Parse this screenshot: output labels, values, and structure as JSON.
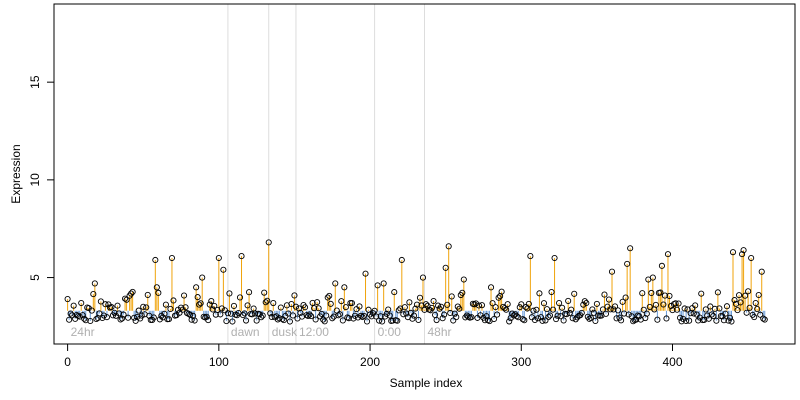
{
  "chart_data": {
    "type": "scatter",
    "xlabel": "Sample index",
    "ylabel": "Expression",
    "xlim": [
      -9,
      481
    ],
    "ylim": [
      1.6,
      19.0
    ],
    "x_ticks": [
      0,
      100,
      200,
      300,
      400
    ],
    "y_ticks": [
      5,
      10,
      15
    ],
    "baseline": 3.3,
    "colors": {
      "above": "#f0a30a",
      "below": "#6a9bd6",
      "vline": "#dddddd",
      "axis": "#000000",
      "phase_label": "#b0b0b0"
    },
    "phases": [
      {
        "label": "24hr",
        "x": 0
      },
      {
        "label": "dawn",
        "x": 106
      },
      {
        "label": "dusk",
        "x": 133
      },
      {
        "label": "12:00",
        "x": 151
      },
      {
        "label": "0:00",
        "x": 203
      },
      {
        "label": "48hr",
        "x": 236
      }
    ],
    "n_points": 462,
    "highlight_points": [
      {
        "x": 0,
        "y": 3.9
      },
      {
        "x": 18,
        "y": 4.7
      },
      {
        "x": 58,
        "y": 5.9
      },
      {
        "x": 59,
        "y": 4.5
      },
      {
        "x": 69,
        "y": 6.0
      },
      {
        "x": 85,
        "y": 4.5
      },
      {
        "x": 86,
        "y": 4.0
      },
      {
        "x": 89,
        "y": 5.0
      },
      {
        "x": 100,
        "y": 6.0
      },
      {
        "x": 103,
        "y": 5.4
      },
      {
        "x": 115,
        "y": 6.1
      },
      {
        "x": 133,
        "y": 6.8
      },
      {
        "x": 177,
        "y": 4.7
      },
      {
        "x": 183,
        "y": 4.5
      },
      {
        "x": 197,
        "y": 5.2
      },
      {
        "x": 205,
        "y": 4.6
      },
      {
        "x": 209,
        "y": 4.7
      },
      {
        "x": 221,
        "y": 5.9
      },
      {
        "x": 235,
        "y": 5.0
      },
      {
        "x": 250,
        "y": 5.5
      },
      {
        "x": 252,
        "y": 6.6
      },
      {
        "x": 262,
        "y": 4.9
      },
      {
        "x": 280,
        "y": 4.5
      },
      {
        "x": 306,
        "y": 6.1
      },
      {
        "x": 322,
        "y": 6.0
      },
      {
        "x": 360,
        "y": 5.3
      },
      {
        "x": 370,
        "y": 5.7
      },
      {
        "x": 372,
        "y": 6.5
      },
      {
        "x": 380,
        "y": 4.2
      },
      {
        "x": 384,
        "y": 4.9
      },
      {
        "x": 387,
        "y": 5.0
      },
      {
        "x": 393,
        "y": 5.6
      },
      {
        "x": 397,
        "y": 6.2
      },
      {
        "x": 440,
        "y": 6.3
      },
      {
        "x": 444,
        "y": 4.1
      },
      {
        "x": 446,
        "y": 6.2
      },
      {
        "x": 447,
        "y": 6.4
      },
      {
        "x": 450,
        "y": 4.3
      },
      {
        "x": 452,
        "y": 6.0
      },
      {
        "x": 459,
        "y": 5.3
      }
    ]
  }
}
